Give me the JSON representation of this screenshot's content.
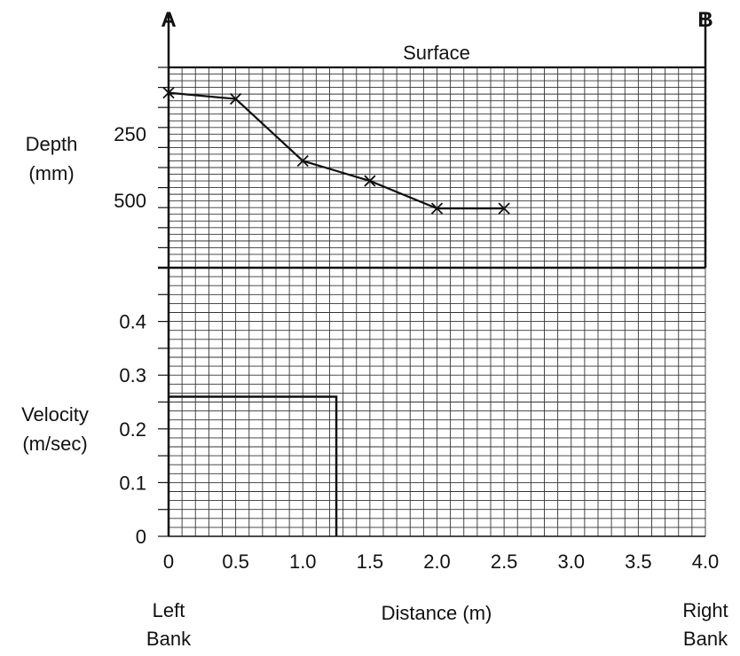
{
  "corner_labels": {
    "left": "A",
    "right": "B"
  },
  "surface_label": "Surface",
  "depth_axis": {
    "label_line1": "Depth",
    "label_line2": "(mm)",
    "ticks": [
      "250",
      "500"
    ]
  },
  "velocity_axis": {
    "label_line1": "Velocity",
    "label_line2": "(m/sec)",
    "ticks": [
      "0",
      "0.1",
      "0.2",
      "0.3",
      "0.4"
    ]
  },
  "x_axis": {
    "label": "Distance (m)",
    "ticks": [
      "0",
      "0.5",
      "1.0",
      "1.5",
      "2.0",
      "2.5",
      "3.0",
      "3.5",
      "4.0"
    ]
  },
  "left_bank": {
    "line1": "Left",
    "line2": "Bank"
  },
  "right_bank": {
    "line1": "Right",
    "line2": "Bank"
  },
  "colors": {
    "ink": "#111111",
    "grid": "#333333",
    "background": "#ffffff"
  },
  "chart_data": [
    {
      "type": "line",
      "title": "",
      "xlabel": "Distance (m)",
      "ylabel": "Depth (mm)",
      "y_inverted": true,
      "xlim": [
        0,
        4.0
      ],
      "ylim": [
        0,
        750
      ],
      "grid": true,
      "x": [
        0,
        0.5,
        1.0,
        1.5,
        2.0,
        2.5
      ],
      "values": [
        95,
        118,
        350,
        425,
        528,
        528
      ],
      "marker": "x"
    },
    {
      "type": "bar",
      "title": "",
      "xlabel": "Distance (m)",
      "ylabel": "Velocity (m/sec)",
      "xlim": [
        0,
        4.0
      ],
      "ylim": [
        0,
        0.5
      ],
      "grid": true,
      "bars": [
        {
          "x_start": 0,
          "x_end": 1.25,
          "value": 0.26
        }
      ]
    }
  ]
}
